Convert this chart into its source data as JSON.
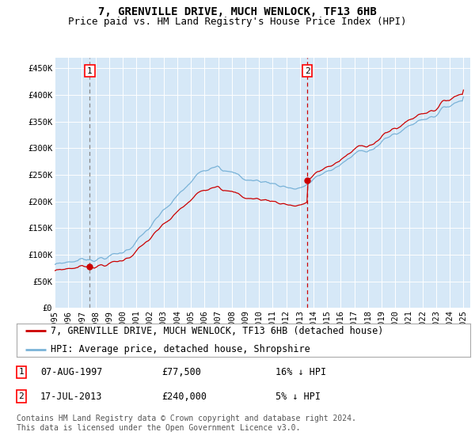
{
  "title": "7, GRENVILLE DRIVE, MUCH WENLOCK, TF13 6HB",
  "subtitle": "Price paid vs. HM Land Registry's House Price Index (HPI)",
  "ylim": [
    0,
    470000
  ],
  "yticks": [
    0,
    50000,
    100000,
    150000,
    200000,
    250000,
    300000,
    350000,
    400000,
    450000
  ],
  "ytick_labels": [
    "£0",
    "£50K",
    "£100K",
    "£150K",
    "£200K",
    "£250K",
    "£300K",
    "£350K",
    "£400K",
    "£450K"
  ],
  "bg_color": "#d6e8f7",
  "grid_color": "#ffffff",
  "hpi_color": "#7ab3d8",
  "price_color": "#cc0000",
  "sale1_year": 1997.58,
  "sale1_price": 77500,
  "sale2_year": 2013.54,
  "sale2_price": 240000,
  "legend_label1": "7, GRENVILLE DRIVE, MUCH WENLOCK, TF13 6HB (detached house)",
  "legend_label2": "HPI: Average price, detached house, Shropshire",
  "footer": "Contains HM Land Registry data © Crown copyright and database right 2024.\nThis data is licensed under the Open Government Licence v3.0.",
  "title_fontsize": 10,
  "subtitle_fontsize": 9,
  "tick_fontsize": 7.5,
  "legend_fontsize": 8.5,
  "footer_fontsize": 7
}
